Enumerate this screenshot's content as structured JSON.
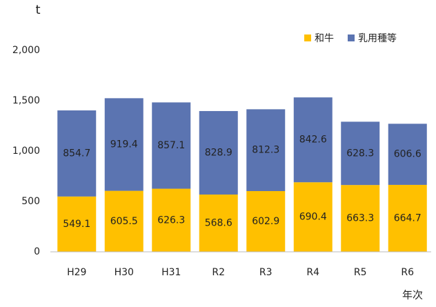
{
  "chart_data": {
    "type": "stacked_bar",
    "y_label": "t",
    "x_label": "年次",
    "categories": [
      "H29",
      "H30",
      "H31",
      "R2",
      "R3",
      "R4",
      "R5",
      "R6"
    ],
    "series": [
      {
        "name": "和牛",
        "color": "#ffc000",
        "values": [
          549.1,
          605.5,
          626.3,
          568.6,
          602.9,
          690.4,
          663.3,
          664.7
        ]
      },
      {
        "name": "乳用種等",
        "color": "#5b74b1",
        "values": [
          854.7,
          919.4,
          857.1,
          828.9,
          812.3,
          842.6,
          628.3,
          606.6
        ]
      }
    ],
    "ylim": [
      0,
      2000
    ],
    "yticks": [
      0,
      500,
      {
        "value": 1000,
        "label": "1,000"
      },
      {
        "value": 1500,
        "label": "1,500"
      },
      {
        "value": 2000,
        "label": "2,000"
      }
    ],
    "legend": "top-right",
    "grid": false
  }
}
